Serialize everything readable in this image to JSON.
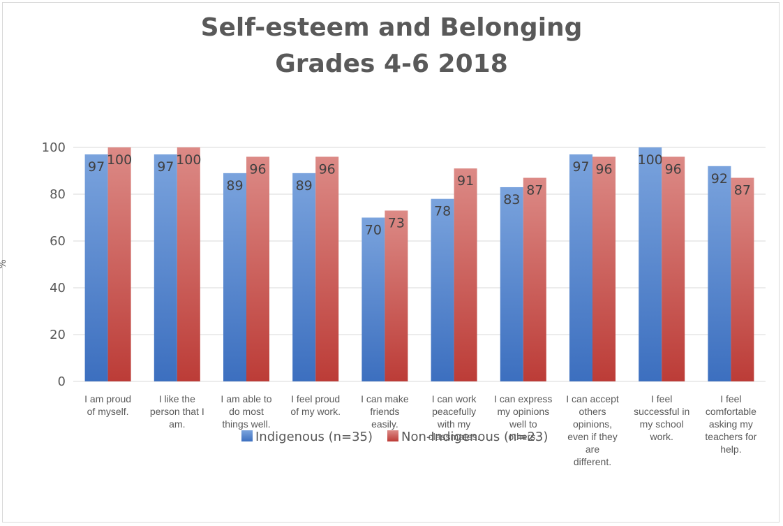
{
  "chart_data": {
    "type": "bar",
    "title": [
      "Self-esteem and Belonging",
      "Grades 4-6 2018"
    ],
    "ylabel": "%",
    "ylim": [
      0,
      100
    ],
    "yticks": [
      0,
      20,
      40,
      60,
      80,
      100
    ],
    "grid": true,
    "legend_position": "bottom",
    "categories": [
      [
        "I am proud",
        "of myself."
      ],
      [
        "I like the",
        "person that I",
        "am."
      ],
      [
        "I am able to",
        "do most",
        "things well."
      ],
      [
        "I feel proud",
        "of my work."
      ],
      [
        "I can make",
        "friends",
        "easily."
      ],
      [
        "I can work",
        "peacefully",
        "with my",
        "classmates."
      ],
      [
        "I can express",
        "my opinions",
        "well to",
        "others."
      ],
      [
        "I can accept",
        "others",
        "opinions,",
        "even if they",
        "are",
        "different."
      ],
      [
        "I feel",
        "successful in",
        "my school",
        "work."
      ],
      [
        "I feel",
        "comfortable",
        "asking my",
        "teachers for",
        "help."
      ]
    ],
    "series": [
      {
        "name": "Indigenous (n=35)",
        "values": [
          97,
          97,
          89,
          89,
          70,
          78,
          83,
          97,
          100,
          92
        ]
      },
      {
        "name": "Non-Indigenous (n=23)",
        "values": [
          100,
          100,
          96,
          96,
          73,
          91,
          87,
          96,
          96,
          87
        ]
      }
    ],
    "colors": {
      "series": [
        [
          "#7aa3dd",
          "#3c6fbf"
        ],
        [
          "#dc8a86",
          "#bc3c37"
        ]
      ],
      "grid": "#d9d9d9",
      "text": "#595959"
    }
  }
}
